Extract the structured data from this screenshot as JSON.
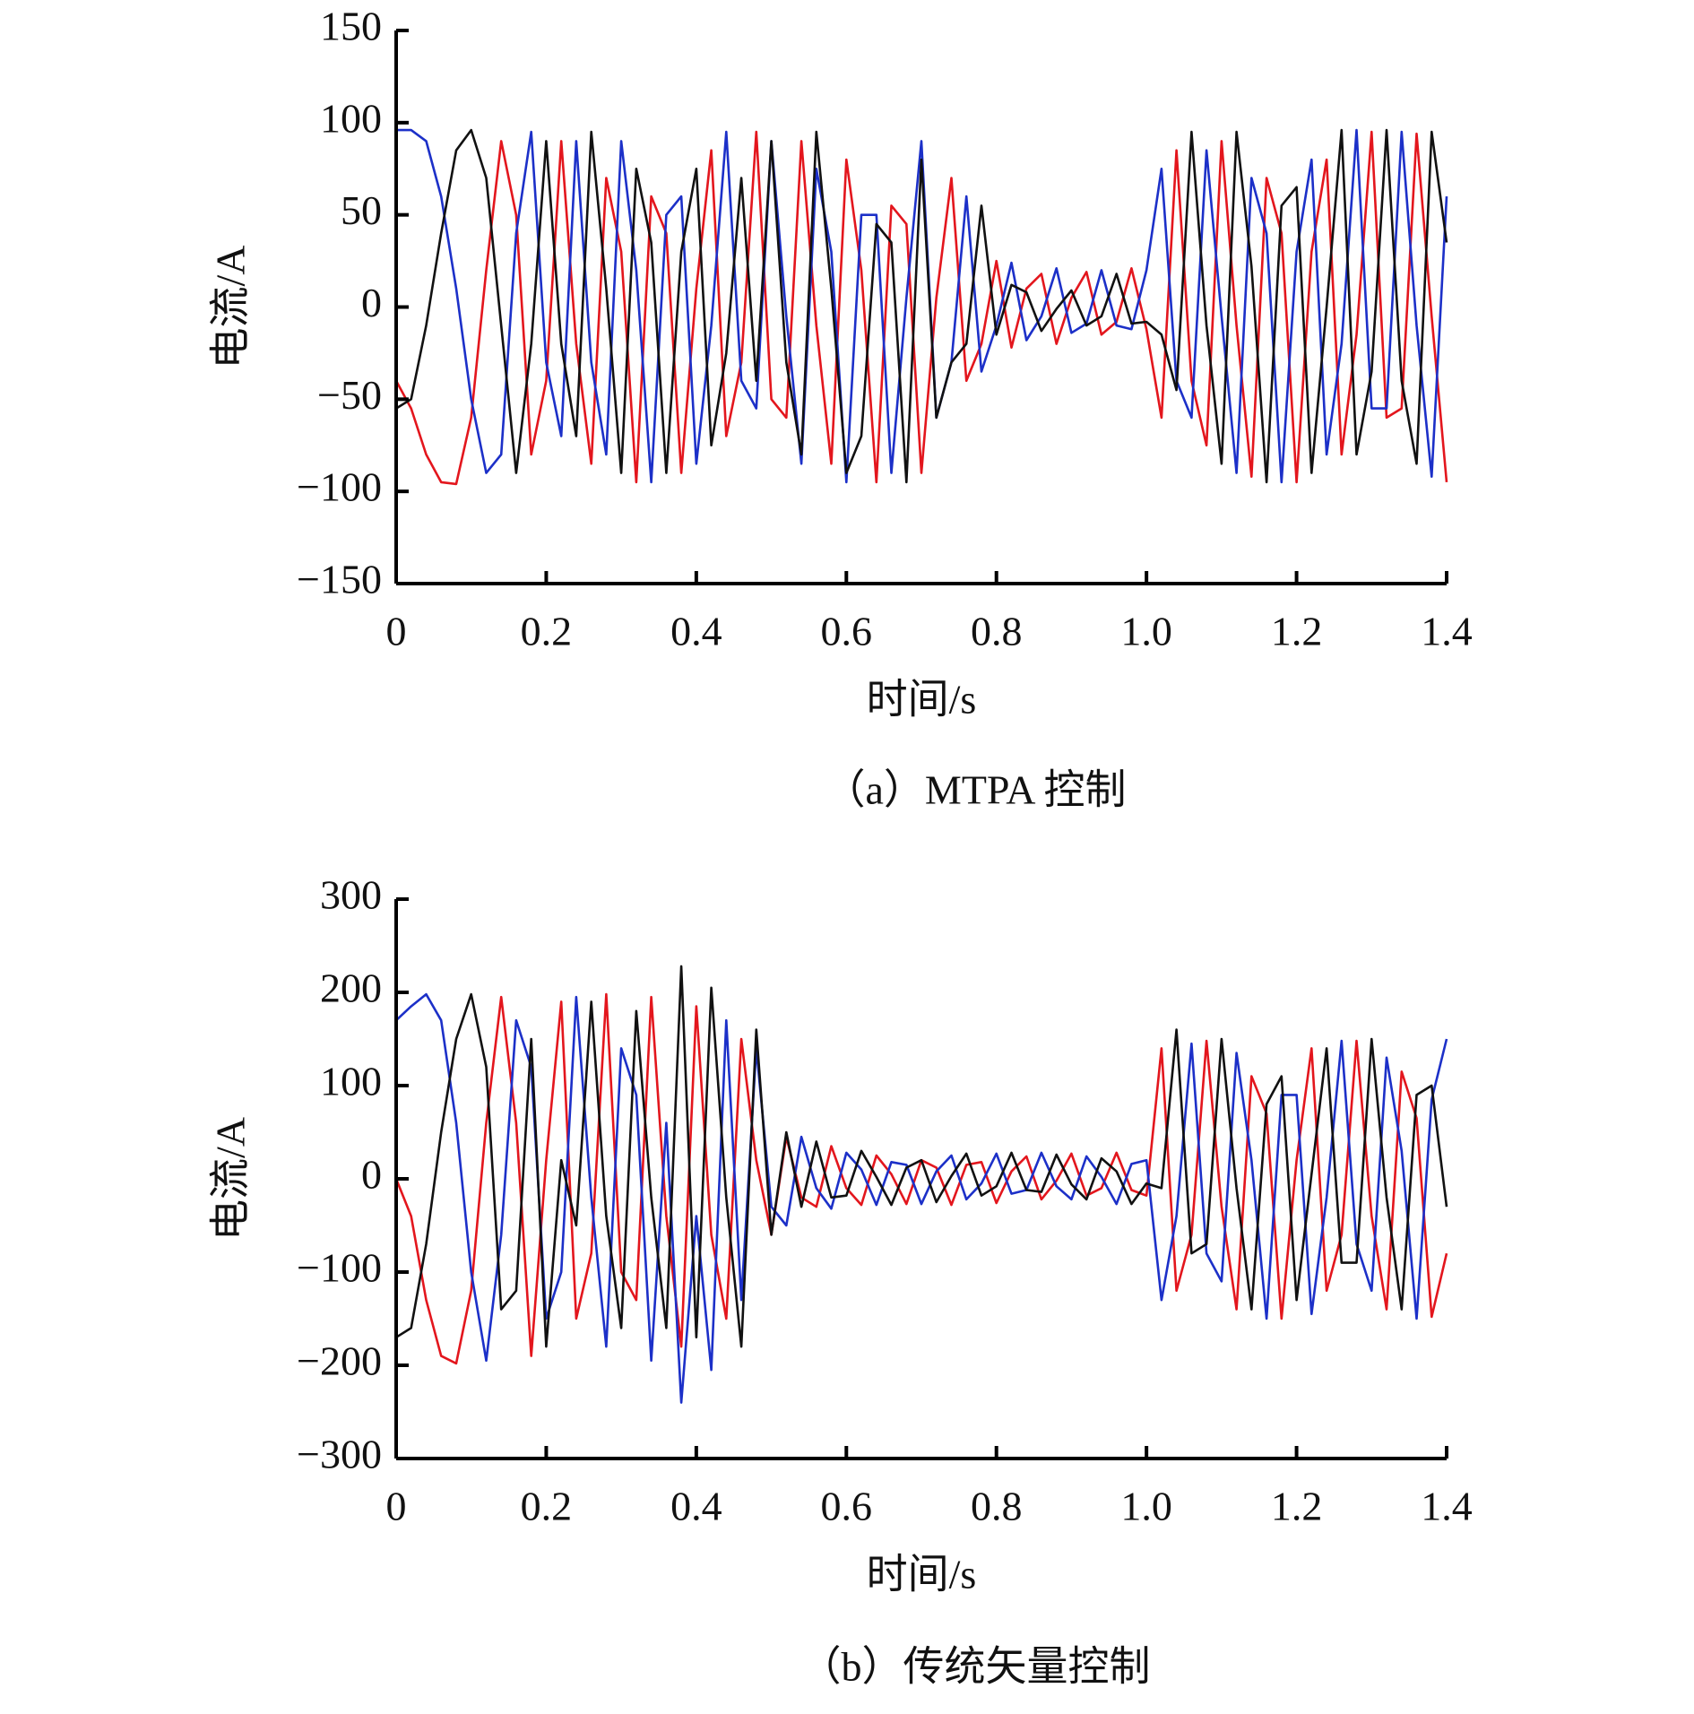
{
  "chart_data": [
    {
      "type": "line",
      "title": "（a）MTPA 控制",
      "xlabel": "时间/s",
      "ylabel": "电流/A",
      "x": [
        0,
        0.02,
        0.04,
        0.06,
        0.08,
        0.1,
        0.12,
        0.14,
        0.16,
        0.18,
        0.2,
        0.22,
        0.24,
        0.26,
        0.28,
        0.3,
        0.32,
        0.34,
        0.36,
        0.38,
        0.4,
        0.42,
        0.44,
        0.46,
        0.48,
        0.5,
        0.52,
        0.54,
        0.56,
        0.58,
        0.6,
        0.62,
        0.64,
        0.66,
        0.68,
        0.7,
        0.72,
        0.74,
        0.76,
        0.78,
        0.8,
        0.82,
        0.84,
        0.86,
        0.88,
        0.9,
        0.92,
        0.94,
        0.96,
        0.98,
        1,
        1.02,
        1.04,
        1.06,
        1.08,
        1.1,
        1.12,
        1.14,
        1.16,
        1.18,
        1.2,
        1.22,
        1.24,
        1.26,
        1.28,
        1.3,
        1.32,
        1.34,
        1.36,
        1.38,
        1.4
      ],
      "series": [
        {
          "color": "#e3161d",
          "values": [
            -40,
            -55,
            -80,
            -95,
            -96,
            -60,
            20,
            90,
            50,
            -80,
            -40,
            90,
            -20,
            -85,
            70,
            30,
            -95,
            60,
            40,
            -90,
            10,
            85,
            -70,
            -30,
            95,
            -50,
            -60,
            90,
            -10,
            -85,
            80,
            20,
            -95,
            55,
            45,
            -90,
            5,
            70,
            -40,
            -20,
            25,
            -22,
            10,
            18,
            -20,
            5,
            19,
            -15,
            -8,
            21,
            -12,
            -60,
            85,
            -40,
            -75,
            90,
            -10,
            -92,
            70,
            40,
            -95,
            30,
            80,
            -80,
            -15,
            95,
            -60,
            -55,
            94,
            -5,
            -95
          ]
        },
        {
          "color": "#1c30c8",
          "values": [
            96,
            96,
            90,
            60,
            10,
            -50,
            -90,
            -80,
            40,
            95,
            -30,
            -70,
            90,
            -30,
            -80,
            90,
            20,
            -95,
            50,
            60,
            -85,
            -10,
            95,
            -40,
            -55,
            90,
            -5,
            -85,
            75,
            30,
            -95,
            50,
            50,
            -90,
            5,
            90,
            -60,
            -30,
            60,
            -35,
            -10,
            24,
            -18,
            -5,
            21,
            -14,
            -9,
            20,
            -10,
            -12,
            20,
            75,
            -40,
            -60,
            85,
            -5,
            -90,
            70,
            40,
            -95,
            30,
            80,
            -80,
            -20,
            96,
            -55,
            -55,
            95,
            -10,
            -92,
            60
          ]
        },
        {
          "color": "#111111",
          "values": [
            -55,
            -50,
            -10,
            40,
            85,
            96,
            70,
            -10,
            -90,
            -20,
            90,
            -20,
            -70,
            95,
            10,
            -90,
            75,
            35,
            -90,
            30,
            75,
            -75,
            -25,
            70,
            -40,
            90,
            -30,
            -80,
            95,
            10,
            -90,
            -70,
            45,
            35,
            -95,
            80,
            -60,
            -30,
            -20,
            55,
            -15,
            12,
            8,
            -13,
            -1,
            9,
            -10,
            -5,
            18,
            -9,
            -8,
            -15,
            -45,
            95,
            -10,
            -85,
            95,
            22,
            -95,
            55,
            65,
            -90,
            0,
            96,
            -80,
            -35,
            96,
            -40,
            -85,
            95,
            35
          ]
        }
      ],
      "xlim": [
        0,
        1.4
      ],
      "xticks": [
        0,
        0.2,
        0.4,
        0.6,
        0.8,
        {
          "value": 1,
          "label": "1.0"
        },
        1.2,
        1.4
      ],
      "ylim": [
        -150,
        150
      ],
      "yticks": [
        150,
        100,
        50,
        0,
        {
          "value": -50,
          "label": "−50"
        },
        {
          "value": -100,
          "label": "−100"
        },
        {
          "value": -150,
          "label": "−150"
        }
      ]
    },
    {
      "type": "line",
      "title": "（b）传统矢量控制",
      "xlabel": "时间/s",
      "ylabel": "电流/A",
      "x": [
        0,
        0.02,
        0.04,
        0.06,
        0.08,
        0.1,
        0.12,
        0.14,
        0.16,
        0.18,
        0.2,
        0.22,
        0.24,
        0.26,
        0.28,
        0.3,
        0.32,
        0.34,
        0.36,
        0.38,
        0.4,
        0.42,
        0.44,
        0.46,
        0.48,
        0.5,
        0.52,
        0.54,
        0.56,
        0.58,
        0.6,
        0.62,
        0.64,
        0.66,
        0.68,
        0.7,
        0.72,
        0.74,
        0.76,
        0.78,
        0.8,
        0.82,
        0.84,
        0.86,
        0.88,
        0.9,
        0.92,
        0.94,
        0.96,
        0.98,
        1,
        1.02,
        1.04,
        1.06,
        1.08,
        1.1,
        1.12,
        1.14,
        1.16,
        1.18,
        1.2,
        1.22,
        1.24,
        1.26,
        1.28,
        1.3,
        1.32,
        1.34,
        1.36,
        1.38,
        1.4
      ],
      "series": [
        {
          "color": "#e3161d",
          "values": [
            0,
            -40,
            -130,
            -190,
            -198,
            -120,
            60,
            195,
            60,
            -190,
            20,
            190,
            -150,
            -80,
            198,
            -100,
            -130,
            195,
            -40,
            -180,
            185,
            -60,
            -150,
            150,
            20,
            -60,
            45,
            -20,
            -30,
            35,
            -10,
            -28,
            25,
            5,
            -27,
            20,
            12,
            -28,
            15,
            18,
            -26,
            8,
            24,
            -22,
            -2,
            27,
            -18,
            -10,
            28,
            -12,
            -18,
            140,
            -120,
            -60,
            148,
            -30,
            -140,
            110,
            70,
            -150,
            20,
            140,
            -120,
            -60,
            148,
            -40,
            -140,
            115,
            65,
            -148,
            -80
          ]
        },
        {
          "color": "#1c30c8",
          "values": [
            170,
            185,
            198,
            170,
            60,
            -100,
            -195,
            -60,
            170,
            120,
            -150,
            -100,
            195,
            -20,
            -180,
            140,
            90,
            -195,
            60,
            -240,
            -40,
            -205,
            170,
            -130,
            140,
            -30,
            -50,
            45,
            -10,
            -32,
            28,
            10,
            -28,
            18,
            15,
            -27,
            8,
            25,
            -22,
            -5,
            27,
            -16,
            -12,
            28,
            -8,
            -22,
            24,
            2,
            -27,
            16,
            20,
            -130,
            -40,
            145,
            -80,
            -110,
            135,
            20,
            -150,
            90,
            90,
            -145,
            -20,
            148,
            -70,
            -120,
            130,
            30,
            -150,
            85,
            150
          ]
        },
        {
          "color": "#111111",
          "values": [
            -170,
            -160,
            -70,
            50,
            150,
            198,
            120,
            -140,
            -120,
            150,
            -180,
            20,
            -50,
            190,
            -40,
            -160,
            180,
            -20,
            -160,
            228,
            -170,
            205,
            -20,
            -180,
            160,
            -60,
            50,
            -30,
            40,
            -20,
            -18,
            30,
            2,
            -28,
            12,
            20,
            -25,
            3,
            27,
            -18,
            -8,
            28,
            -12,
            -14,
            26,
            -6,
            -22,
            22,
            8,
            -27,
            -5,
            -10,
            160,
            -80,
            -70,
            150,
            -10,
            -140,
            80,
            110,
            -130,
            5,
            140,
            -90,
            -90,
            150,
            -20,
            -140,
            90,
            100,
            -30
          ]
        }
      ],
      "xlim": [
        0,
        1.4
      ],
      "xticks": [
        0,
        0.2,
        0.4,
        0.6,
        0.8,
        {
          "value": 1,
          "label": "1.0"
        },
        1.2,
        1.4
      ],
      "ylim": [
        -300,
        300
      ],
      "yticks": [
        300,
        200,
        100,
        0,
        {
          "value": -100,
          "label": "−100"
        },
        {
          "value": -200,
          "label": "−200"
        },
        {
          "value": -300,
          "label": "−300"
        }
      ]
    }
  ]
}
